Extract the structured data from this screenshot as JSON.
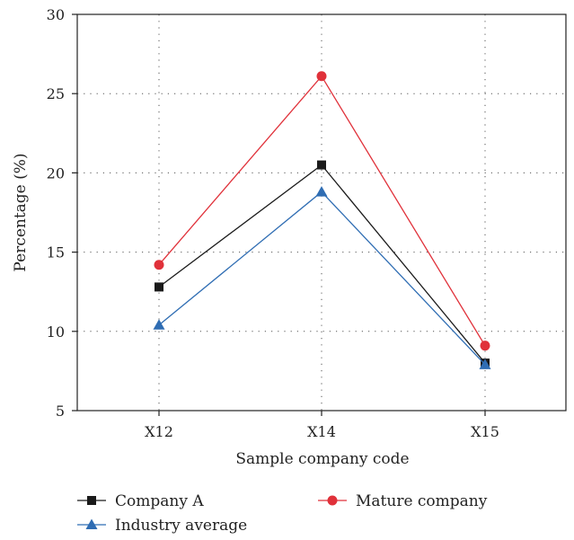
{
  "chart_data": {
    "type": "line",
    "xlabel": "Sample company code",
    "ylabel": "Percentage (%)",
    "ylim": [
      5,
      30
    ],
    "yticks": [
      5,
      10,
      15,
      20,
      25,
      30
    ],
    "categories": [
      "X12",
      "X14",
      "X15"
    ],
    "grid": "dotted",
    "legend_position": "bottom",
    "series": [
      {
        "name": "Company A",
        "values": [
          12.8,
          20.5,
          8.0
        ],
        "color": "#1a1a1a",
        "marker": "square"
      },
      {
        "name": "Mature company",
        "values": [
          14.2,
          26.1,
          9.1
        ],
        "color": "#e0313a",
        "marker": "circle"
      },
      {
        "name": "Industry average",
        "values": [
          10.4,
          18.8,
          7.9
        ],
        "color": "#2f6db3",
        "marker": "triangle"
      }
    ]
  }
}
